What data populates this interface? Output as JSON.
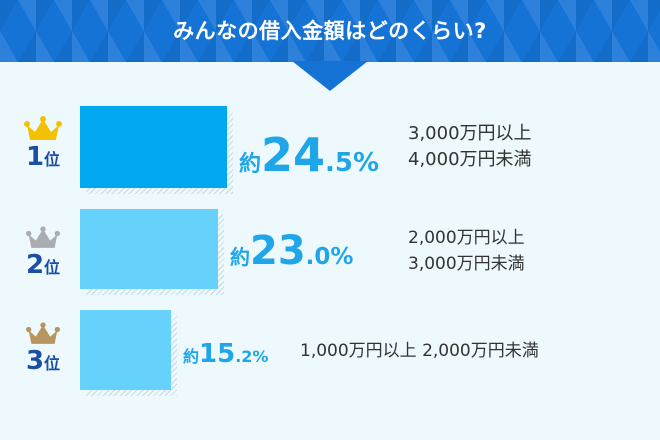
{
  "title": "みんなの借入金額はどのくらい?",
  "ranks": [
    {
      "num": "1",
      "suffix": "位",
      "crown_color": "#f2c200"
    },
    {
      "num": "2",
      "suffix": "位",
      "crown_color": "#a9acb0"
    },
    {
      "num": "3",
      "suffix": "位",
      "crown_color": "#b7955e"
    }
  ],
  "colors": {
    "header": "#1573d6",
    "bar_top": "#00a8f0",
    "bar_other": "#66d2fb",
    "accent": "#1fa6e8"
  },
  "chart_data": {
    "type": "bar",
    "orientation": "horizontal",
    "title": "みんなの借入金額はどのくらい?",
    "categories": [
      "3,000万円以上 4,000万円未満",
      "2,000万円以上 3,000万円未満",
      "1,000万円以上 2,000万円未満"
    ],
    "values": [
      24.5,
      23.0,
      15.2
    ],
    "labels": [
      {
        "prefix": "約",
        "int": "24",
        "dec": ".5",
        "unit": "%"
      },
      {
        "prefix": "約",
        "int": "23",
        "dec": ".0",
        "unit": "%"
      },
      {
        "prefix": "約",
        "int": "15",
        "dec": ".2",
        "unit": "%"
      }
    ],
    "descriptions": [
      [
        "3,000万円以上",
        "4,000万円未満"
      ],
      [
        "2,000万円以上",
        "3,000万円未満"
      ],
      [
        "1,000万円以上 2,000万円未満"
      ]
    ]
  }
}
